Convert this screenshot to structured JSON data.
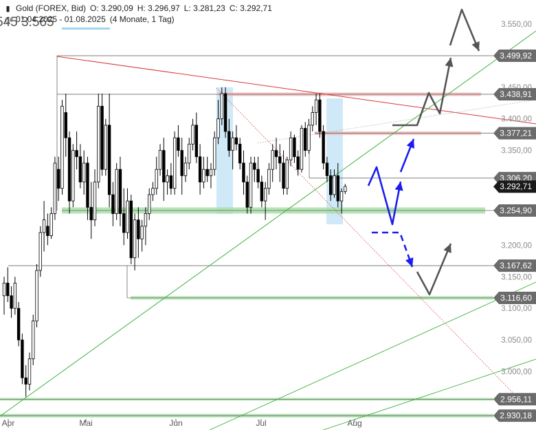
{
  "header": {
    "instrument": "Gold (FOREX, Bid)",
    "open": "O: 3.290,09",
    "high": "H: 3.296,97",
    "low": "L: 3.281,23",
    "close": "C: 3.292,71",
    "range": "01.04.2025 - 01.08.2025",
    "period": "(4 Monate, 1 Tag)",
    "ghost_text": "545   3.565"
  },
  "colors": {
    "up": "#ffffff",
    "down": "#000000",
    "resistance": "#f2b8b8",
    "support": "#a9dfa9",
    "trend_red": "#d9383b",
    "trend_green": "#3fb23f",
    "arrow_blue": "#1b1bf0",
    "arrow_gray": "#555555",
    "zone_blue": "#cfe9f8"
  },
  "chart_data": {
    "type": "candlestick",
    "x_ticks": [
      "Apr",
      "Mai",
      "Jun",
      "Jul",
      "Aug"
    ],
    "y_ticks": [
      "3.550,00",
      "3.450,00",
      "3.400,00",
      "3.350,00",
      "3.200,00",
      "3.150,00",
      "3.100,00",
      "3.050,00",
      "3.000,00"
    ],
    "ylim": [
      2925,
      3595
    ],
    "level_labels": [
      {
        "text": "3.499,92",
        "value": 3499.92,
        "kind": "level"
      },
      {
        "text": "3.438,91",
        "value": 3438.91,
        "kind": "resistance"
      },
      {
        "text": "3.377,21",
        "value": 3377.21,
        "kind": "resistance"
      },
      {
        "text": "3.306,20",
        "value": 3306.2,
        "kind": "level"
      },
      {
        "text": "3.292,71",
        "value": 3292.71,
        "kind": "current"
      },
      {
        "text": "3.254,90",
        "value": 3254.9,
        "kind": "support"
      },
      {
        "text": "3.167,62",
        "value": 3167.62,
        "kind": "level"
      },
      {
        "text": "3.116,60",
        "value": 3116.6,
        "kind": "support"
      },
      {
        "text": "2.956,11",
        "value": 2956.11,
        "kind": "support"
      },
      {
        "text": "2.930,18",
        "value": 2930.18,
        "kind": "support"
      }
    ],
    "candles": [
      [
        3120,
        3150,
        3090,
        3140
      ],
      [
        3140,
        3165,
        3110,
        3120
      ],
      [
        3120,
        3135,
        3085,
        3100
      ],
      [
        3100,
        3150,
        3090,
        3140
      ],
      [
        3100,
        3110,
        3040,
        3050
      ],
      [
        3050,
        3060,
        2980,
        2990
      ],
      [
        2990,
        3010,
        2960,
        2980
      ],
      [
        2980,
        3030,
        2970,
        3020
      ],
      [
        3020,
        3090,
        3010,
        3080
      ],
      [
        3080,
        3170,
        3070,
        3160
      ],
      [
        3160,
        3230,
        3150,
        3220
      ],
      [
        3220,
        3270,
        3190,
        3240
      ],
      [
        3230,
        3250,
        3200,
        3215
      ],
      [
        3215,
        3260,
        3210,
        3250
      ],
      [
        3250,
        3340,
        3240,
        3330
      ],
      [
        3320,
        3340,
        3270,
        3290
      ],
      [
        3290,
        3430,
        3280,
        3420
      ],
      [
        3410,
        3440,
        3340,
        3370
      ],
      [
        3370,
        3380,
        3250,
        3270
      ],
      [
        3270,
        3360,
        3260,
        3350
      ],
      [
        3350,
        3380,
        3320,
        3340
      ],
      [
        3340,
        3360,
        3290,
        3300
      ],
      [
        3300,
        3350,
        3280,
        3330
      ],
      [
        3330,
        3340,
        3240,
        3260
      ],
      [
        3260,
        3300,
        3210,
        3240
      ],
      [
        3240,
        3320,
        3230,
        3300
      ],
      [
        3300,
        3440,
        3290,
        3420
      ],
      [
        3420,
        3440,
        3310,
        3320
      ],
      [
        3320,
        3400,
        3310,
        3390
      ],
      [
        3390,
        3440,
        3260,
        3280
      ],
      [
        3280,
        3300,
        3230,
        3250
      ],
      [
        3250,
        3330,
        3240,
        3320
      ],
      [
        3320,
        3340,
        3230,
        3250
      ],
      [
        3250,
        3290,
        3200,
        3220
      ],
      [
        3220,
        3290,
        3210,
        3270
      ],
      [
        3270,
        3280,
        3170,
        3180
      ],
      [
        3180,
        3250,
        3160,
        3240
      ],
      [
        3240,
        3260,
        3180,
        3210
      ],
      [
        3210,
        3240,
        3190,
        3230
      ],
      [
        3230,
        3260,
        3200,
        3250
      ],
      [
        3250,
        3290,
        3240,
        3280
      ],
      [
        3280,
        3300,
        3270,
        3290
      ],
      [
        3290,
        3340,
        3280,
        3320
      ],
      [
        3320,
        3360,
        3310,
        3350
      ],
      [
        3350,
        3370,
        3270,
        3300
      ],
      [
        3300,
        3320,
        3280,
        3310
      ],
      [
        3310,
        3330,
        3280,
        3290
      ],
      [
        3290,
        3380,
        3280,
        3370
      ],
      [
        3370,
        3390,
        3340,
        3350
      ],
      [
        3350,
        3370,
        3280,
        3310
      ],
      [
        3310,
        3340,
        3300,
        3330
      ],
      [
        3330,
        3370,
        3320,
        3360
      ],
      [
        3360,
        3400,
        3350,
        3390
      ],
      [
        3390,
        3410,
        3330,
        3340
      ],
      [
        3340,
        3360,
        3280,
        3300
      ],
      [
        3300,
        3340,
        3290,
        3320
      ],
      [
        3320,
        3340,
        3300,
        3310
      ],
      [
        3310,
        3330,
        3290,
        3320
      ],
      [
        3320,
        3380,
        3310,
        3370
      ],
      [
        3370,
        3430,
        3360,
        3400
      ],
      [
        3400,
        3450,
        3390,
        3440
      ],
      [
        3440,
        3450,
        3370,
        3380
      ],
      [
        3380,
        3400,
        3340,
        3350
      ],
      [
        3350,
        3380,
        3320,
        3370
      ],
      [
        3370,
        3390,
        3350,
        3360
      ],
      [
        3360,
        3370,
        3320,
        3330
      ],
      [
        3330,
        3350,
        3280,
        3300
      ],
      [
        3300,
        3310,
        3250,
        3260
      ],
      [
        3260,
        3340,
        3250,
        3330
      ],
      [
        3330,
        3340,
        3300,
        3320
      ],
      [
        3320,
        3340,
        3290,
        3300
      ],
      [
        3300,
        3310,
        3260,
        3270
      ],
      [
        3270,
        3300,
        3240,
        3290
      ],
      [
        3290,
        3330,
        3280,
        3320
      ],
      [
        3320,
        3360,
        3300,
        3350
      ],
      [
        3350,
        3370,
        3320,
        3340
      ],
      [
        3340,
        3360,
        3300,
        3330
      ],
      [
        3330,
        3350,
        3280,
        3290
      ],
      [
        3290,
        3340,
        3280,
        3335
      ],
      [
        3335,
        3380,
        3325,
        3370
      ],
      [
        3370,
        3375,
        3330,
        3340
      ],
      [
        3340,
        3350,
        3310,
        3320
      ],
      [
        3320,
        3390,
        3315,
        3385
      ],
      [
        3385,
        3395,
        3340,
        3350
      ],
      [
        3350,
        3400,
        3345,
        3390
      ],
      [
        3390,
        3420,
        3380,
        3410
      ],
      [
        3410,
        3440,
        3390,
        3430
      ],
      [
        3430,
        3440,
        3370,
        3380
      ],
      [
        3380,
        3390,
        3320,
        3330
      ],
      [
        3330,
        3340,
        3300,
        3310
      ],
      [
        3310,
        3320,
        3270,
        3280
      ],
      [
        3280,
        3320,
        3275,
        3310
      ],
      [
        3310,
        3330,
        3260,
        3270
      ],
      [
        3270,
        3290,
        3250,
        3285
      ],
      [
        3285,
        3297,
        3281,
        3293
      ]
    ]
  }
}
